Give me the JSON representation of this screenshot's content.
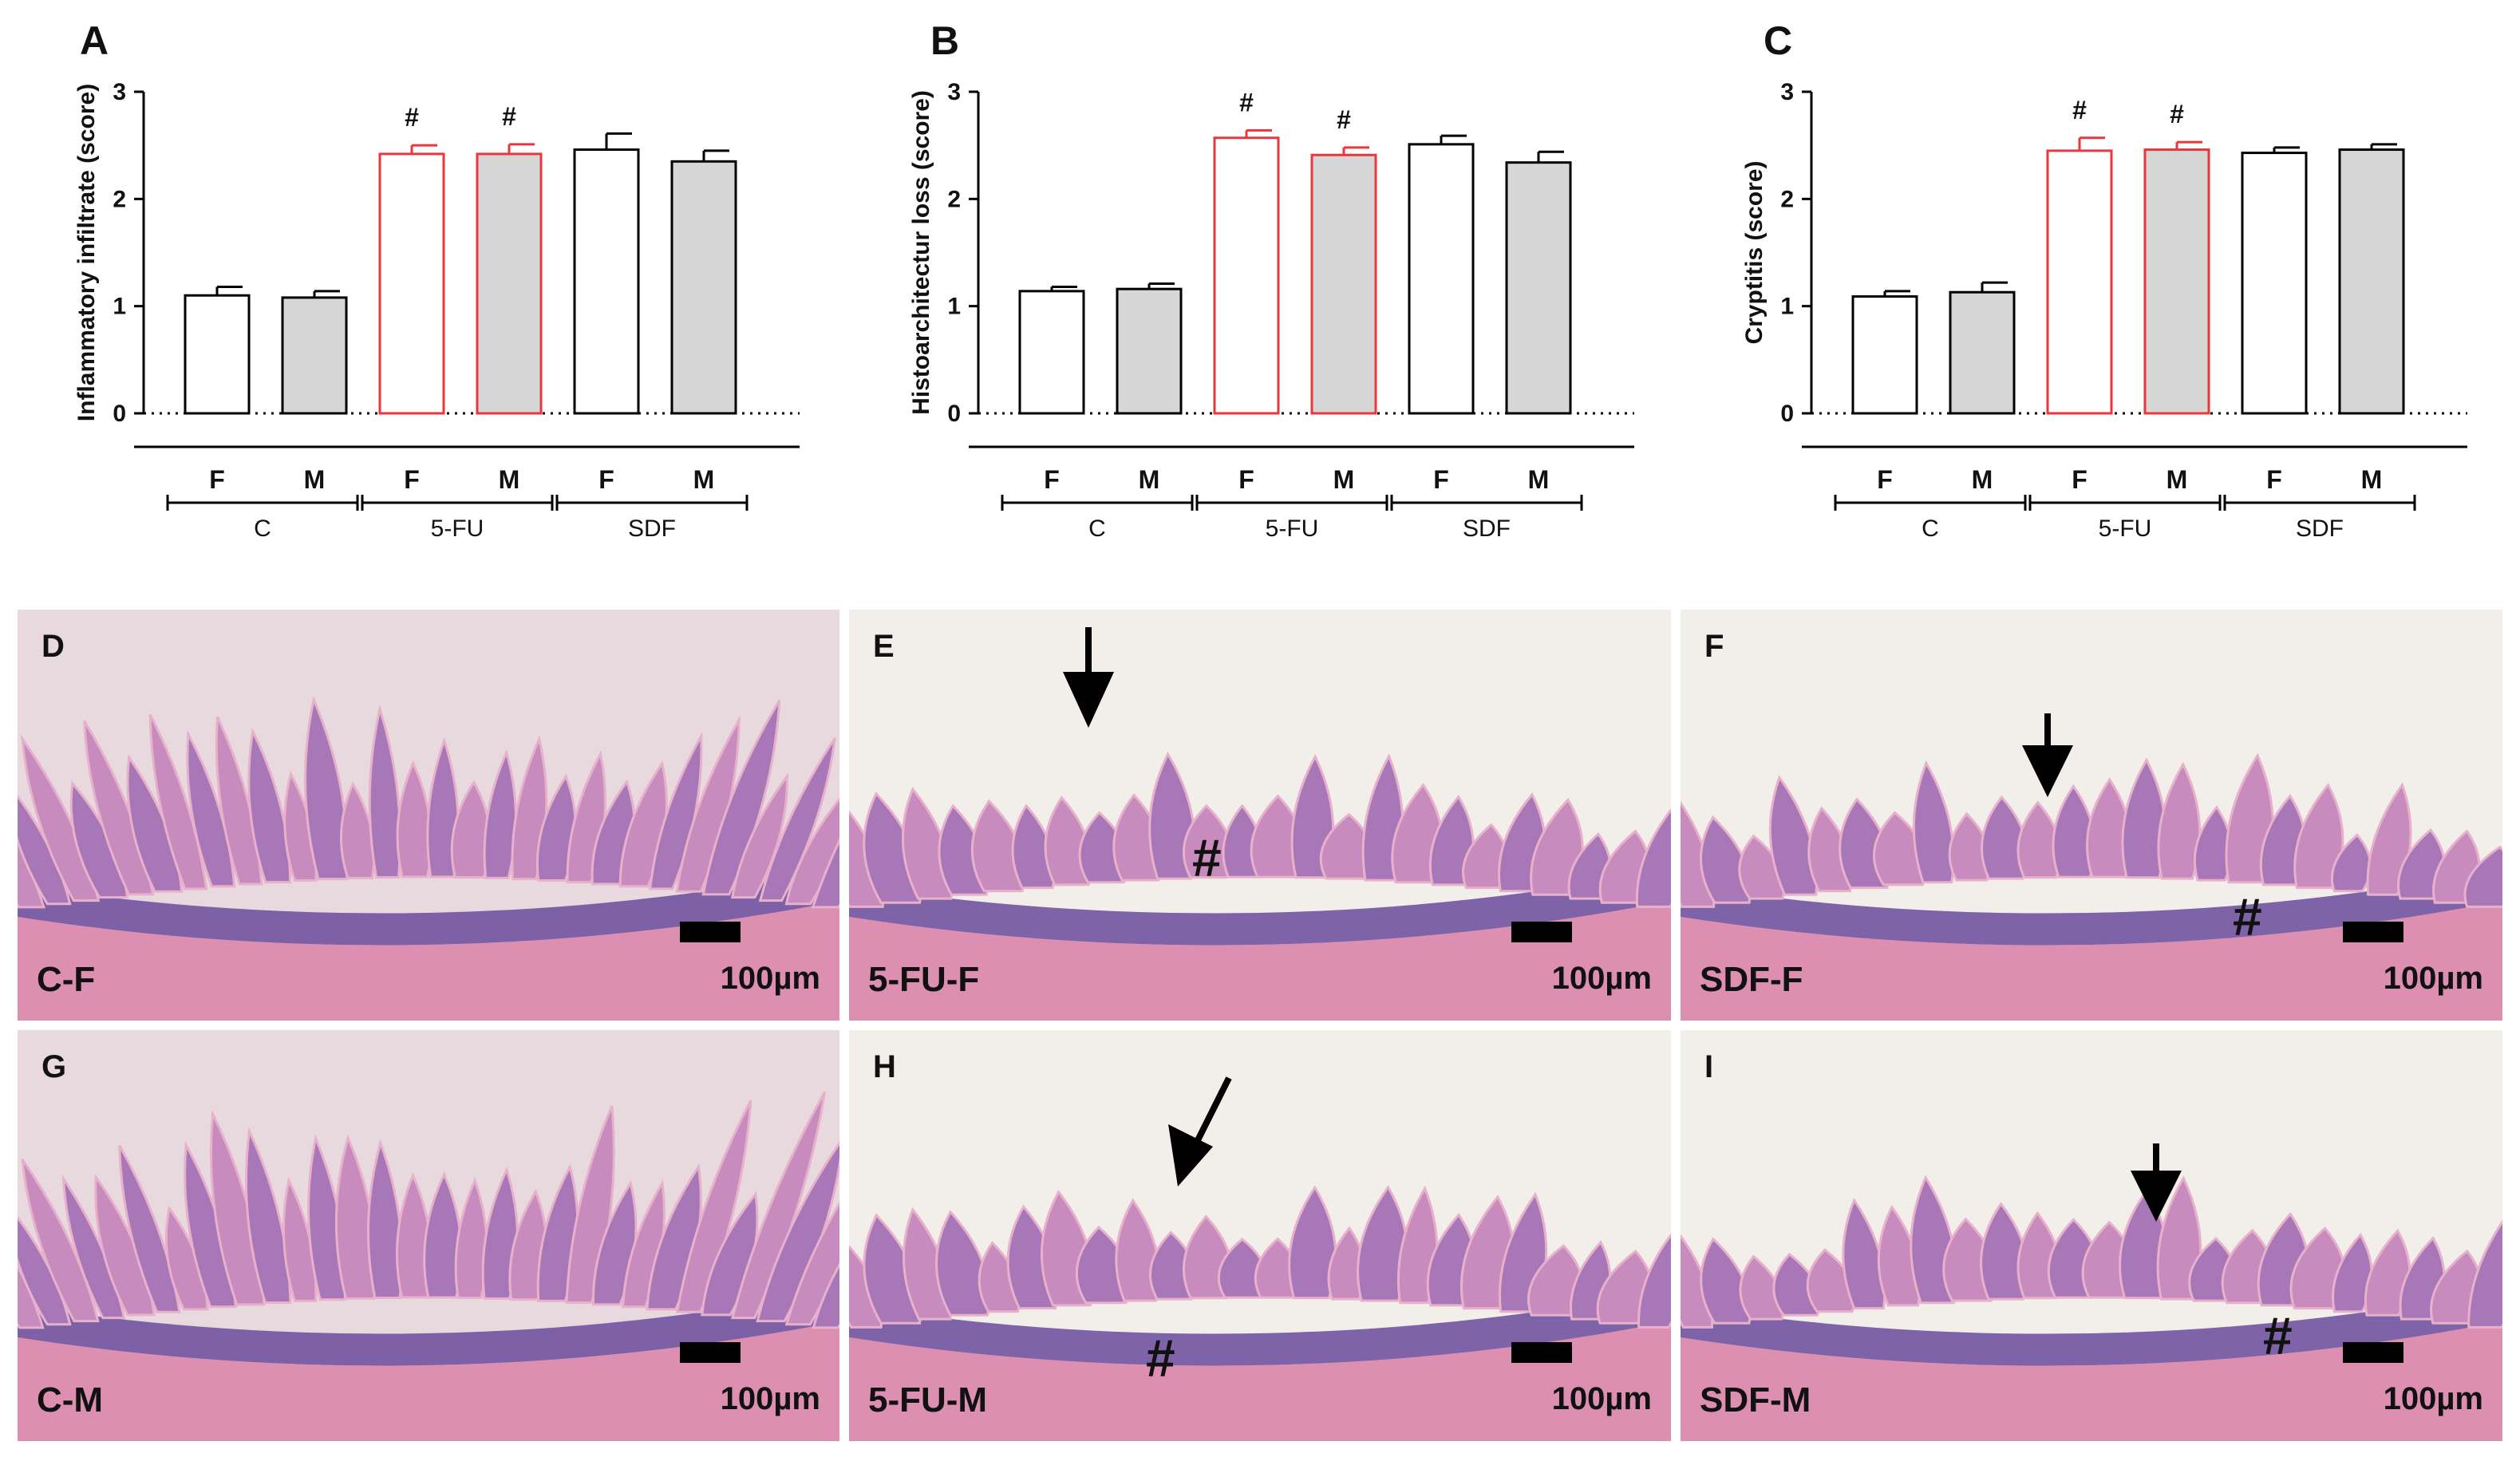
{
  "chart_data": [
    {
      "type": "bar",
      "panel": "A",
      "ylabel": "Inflammatory infiltrate (score)",
      "ylim": [
        0,
        3
      ],
      "yticks": [
        "0",
        "1",
        "2",
        "3"
      ],
      "groups": [
        "C",
        "5-FU",
        "SDF"
      ],
      "categories": [
        "F",
        "M",
        "F",
        "M",
        "F",
        "M"
      ],
      "values": [
        1.1,
        1.08,
        2.42,
        2.42,
        2.46,
        2.35
      ],
      "errors": [
        0.08,
        0.06,
        0.08,
        0.09,
        0.15,
        0.1
      ],
      "annotations": [
        "",
        "",
        "#",
        "#",
        "",
        ""
      ],
      "fills": [
        "#ffffff",
        "#d6d6d6",
        "#ffffff",
        "#d6d6d6",
        "#ffffff",
        "#d6d6d6"
      ],
      "strokes": [
        "#000000",
        "#000000",
        "#e8383d",
        "#e8383d",
        "#000000",
        "#000000"
      ],
      "grid": false
    },
    {
      "type": "bar",
      "panel": "B",
      "ylabel": "Histoarchitectur loss (score)",
      "ylim": [
        0,
        3
      ],
      "yticks": [
        "0",
        "1",
        "2",
        "3"
      ],
      "groups": [
        "C",
        "5-FU",
        "SDF"
      ],
      "categories": [
        "F",
        "M",
        "F",
        "M",
        "F",
        "M"
      ],
      "values": [
        1.14,
        1.16,
        2.57,
        2.41,
        2.51,
        2.34
      ],
      "errors": [
        0.04,
        0.05,
        0.07,
        0.07,
        0.08,
        0.1
      ],
      "annotations": [
        "",
        "",
        "#",
        "#",
        "",
        ""
      ],
      "fills": [
        "#ffffff",
        "#d6d6d6",
        "#ffffff",
        "#d6d6d6",
        "#ffffff",
        "#d6d6d6"
      ],
      "strokes": [
        "#000000",
        "#000000",
        "#e8383d",
        "#e8383d",
        "#000000",
        "#000000"
      ],
      "grid": false
    },
    {
      "type": "bar",
      "panel": "C",
      "ylabel": "Cryptitis (score)",
      "ylim": [
        0,
        3
      ],
      "yticks": [
        "0",
        "1",
        "2",
        "3"
      ],
      "groups": [
        "C",
        "5-FU",
        "SDF"
      ],
      "categories": [
        "F",
        "M",
        "F",
        "M",
        "F",
        "M"
      ],
      "values": [
        1.09,
        1.13,
        2.45,
        2.46,
        2.43,
        2.46
      ],
      "errors": [
        0.05,
        0.09,
        0.12,
        0.07,
        0.05,
        0.05
      ],
      "annotations": [
        "",
        "",
        "#",
        "#",
        "",
        ""
      ],
      "fills": [
        "#ffffff",
        "#d6d6d6",
        "#ffffff",
        "#d6d6d6",
        "#ffffff",
        "#d6d6d6"
      ],
      "strokes": [
        "#000000",
        "#000000",
        "#e8383d",
        "#e8383d",
        "#000000",
        "#000000"
      ],
      "grid": false
    }
  ],
  "micrographs": [
    {
      "letter": "D",
      "caption": "C-F",
      "scale_label": "100µm",
      "hash": "",
      "arrow": false
    },
    {
      "letter": "E",
      "caption": "5-FU-F",
      "scale_label": "100µm",
      "hash": "#",
      "arrow": true
    },
    {
      "letter": "F",
      "caption": "SDF-F",
      "scale_label": "100µm",
      "hash": "#",
      "arrow": true
    },
    {
      "letter": "G",
      "caption": "C-M",
      "scale_label": "100µm",
      "hash": "",
      "arrow": false
    },
    {
      "letter": "H",
      "caption": "5-FU-M",
      "scale_label": "100µm",
      "hash": "#",
      "arrow": true
    },
    {
      "letter": "I",
      "caption": "SDF-M",
      "scale_label": "100µm",
      "hash": "#",
      "arrow": true
    }
  ],
  "colors": {
    "red_outline": "#e8383d",
    "gray_fill": "#d6d6d6",
    "tissue_pink": "#d98fb8",
    "tissue_purple": "#6a4a9c",
    "background_lumen": "#f2efea"
  }
}
